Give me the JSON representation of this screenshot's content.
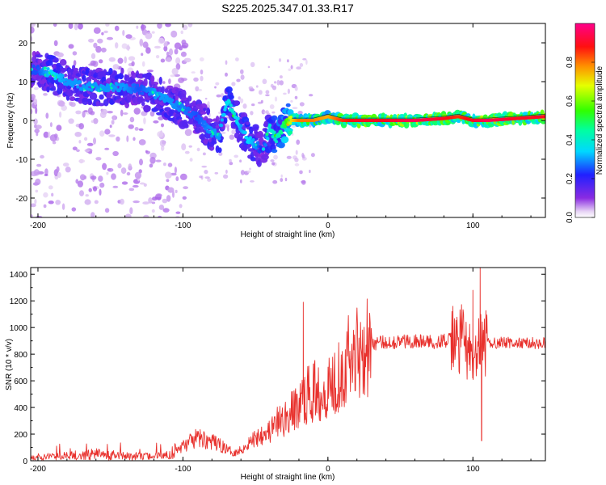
{
  "figure": {
    "title": "S225.2025.347.01.33.R17"
  },
  "colorbar": {
    "label": "Normalized spectral amplitude",
    "ticks": [
      "0.0",
      "0.2",
      "0.4",
      "0.6",
      "0.8"
    ],
    "tick_values": [
      0.0,
      0.2,
      0.4,
      0.6,
      0.8
    ],
    "range": [
      0,
      1
    ],
    "colormap": "rainbow (white → violet → blue → cyan → green → yellow → red → magenta)"
  },
  "chart_data": [
    {
      "type": "heatmap",
      "xlabel": "Height of straight line (km)",
      "ylabel": "Frequency (Hz)",
      "xlim": [
        -205,
        150
      ],
      "ylim": [
        -25,
        25
      ],
      "xticks": [
        -200,
        -100,
        0,
        100
      ],
      "xtick_labels": [
        "-200",
        "-100",
        "0",
        "100"
      ],
      "yticks": [
        -20,
        -10,
        0,
        10,
        20
      ],
      "ytick_labels": [
        "-20",
        "-10",
        "0",
        "10",
        "20"
      ],
      "ridge": {
        "x": [
          -200,
          -190,
          -180,
          -170,
          -160,
          -150,
          -140,
          -130,
          -120,
          -110,
          -100,
          -90,
          -80,
          -75,
          -70,
          -65,
          -60,
          -55,
          -50,
          -45,
          -40,
          -35,
          -30,
          -25,
          -20,
          -10,
          0,
          10,
          20,
          40,
          60,
          80,
          90,
          100,
          110,
          130,
          150
        ],
        "y": [
          13,
          12,
          10,
          9,
          8.5,
          8.5,
          8.5,
          8,
          7,
          5,
          3,
          1,
          -3,
          -4,
          5,
          2,
          -2,
          -5,
          -6,
          -8,
          -2,
          -5,
          -1,
          0,
          0,
          0,
          1,
          0,
          0,
          0,
          0,
          0.5,
          1,
          0,
          0,
          0.5,
          1
        ],
        "amplitude": [
          0.25,
          0.35,
          0.3,
          0.3,
          0.3,
          0.3,
          0.3,
          0.25,
          0.3,
          0.3,
          0.28,
          0.25,
          0.3,
          0.3,
          0.35,
          0.4,
          0.3,
          0.35,
          0.3,
          0.2,
          0.4,
          0.4,
          0.5,
          0.7,
          0.8,
          0.8,
          0.75,
          0.85,
          0.9,
          0.9,
          0.95,
          0.9,
          0.85,
          0.9,
          0.95,
          0.9,
          0.9
        ]
      },
      "colorbar_range": [
        0,
        1
      ]
    },
    {
      "type": "line",
      "xlabel": "Height of straight line (km)",
      "ylabel": "SNR (10 * v/v)",
      "xlim": [
        -205,
        150
      ],
      "ylim": [
        0,
        1450
      ],
      "xticks": [
        -200,
        -100,
        0,
        100
      ],
      "xtick_labels": [
        "-200",
        "-100",
        "0",
        "100"
      ],
      "yticks": [
        0,
        200,
        400,
        600,
        800,
        1000,
        1200,
        1400
      ],
      "ytick_labels": [
        "0",
        "200",
        "400",
        "600",
        "800",
        "1000",
        "1200",
        "1400"
      ],
      "series": [
        {
          "color": "#e8302c",
          "x": [
            -205,
            -180,
            -160,
            -140,
            -120,
            -110,
            -100,
            -95,
            -90,
            -85,
            -80,
            -75,
            -70,
            -65,
            -60,
            -55,
            -50,
            -45,
            -40,
            -35,
            -30,
            -25,
            -20,
            -15,
            -10,
            -5,
            0,
            5,
            10,
            15,
            20,
            25,
            30,
            40,
            50,
            60,
            70,
            80,
            90,
            95,
            100,
            105,
            110,
            120,
            130,
            140,
            150
          ],
          "y": [
            20,
            35,
            50,
            35,
            30,
            45,
            110,
            140,
            170,
            160,
            140,
            120,
            90,
            60,
            80,
            130,
            170,
            220,
            220,
            280,
            310,
            360,
            420,
            480,
            520,
            540,
            550,
            620,
            700,
            780,
            830,
            860,
            880,
            890,
            895,
            900,
            890,
            900,
            910,
            900,
            700,
            850,
            880,
            890,
            880,
            885,
            880
          ],
          "spikes": {
            "x": [
              -17,
              100,
              105,
              106
            ],
            "y": [
              1190,
              1280,
              1450,
              300
            ]
          }
        }
      ]
    }
  ]
}
